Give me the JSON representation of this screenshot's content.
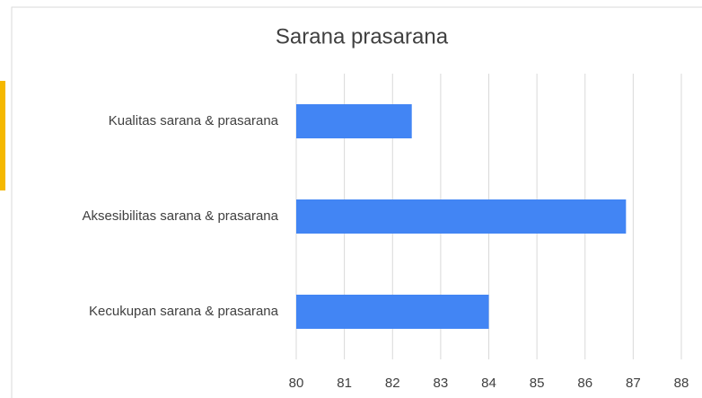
{
  "chart_data": {
    "type": "bar",
    "orientation": "horizontal",
    "title": "Sarana prasarana",
    "categories": [
      "Kualitas sarana & prasarana",
      "Aksesibilitas sarana & prasarana",
      "Kecukupan sarana & prasarana"
    ],
    "values": [
      82.4,
      86.85,
      84.0
    ],
    "color": "#4285f4",
    "xlim": [
      80,
      88
    ],
    "xticks": [
      80,
      81,
      82,
      83,
      84,
      85,
      86,
      87,
      88
    ],
    "grid": true
  }
}
